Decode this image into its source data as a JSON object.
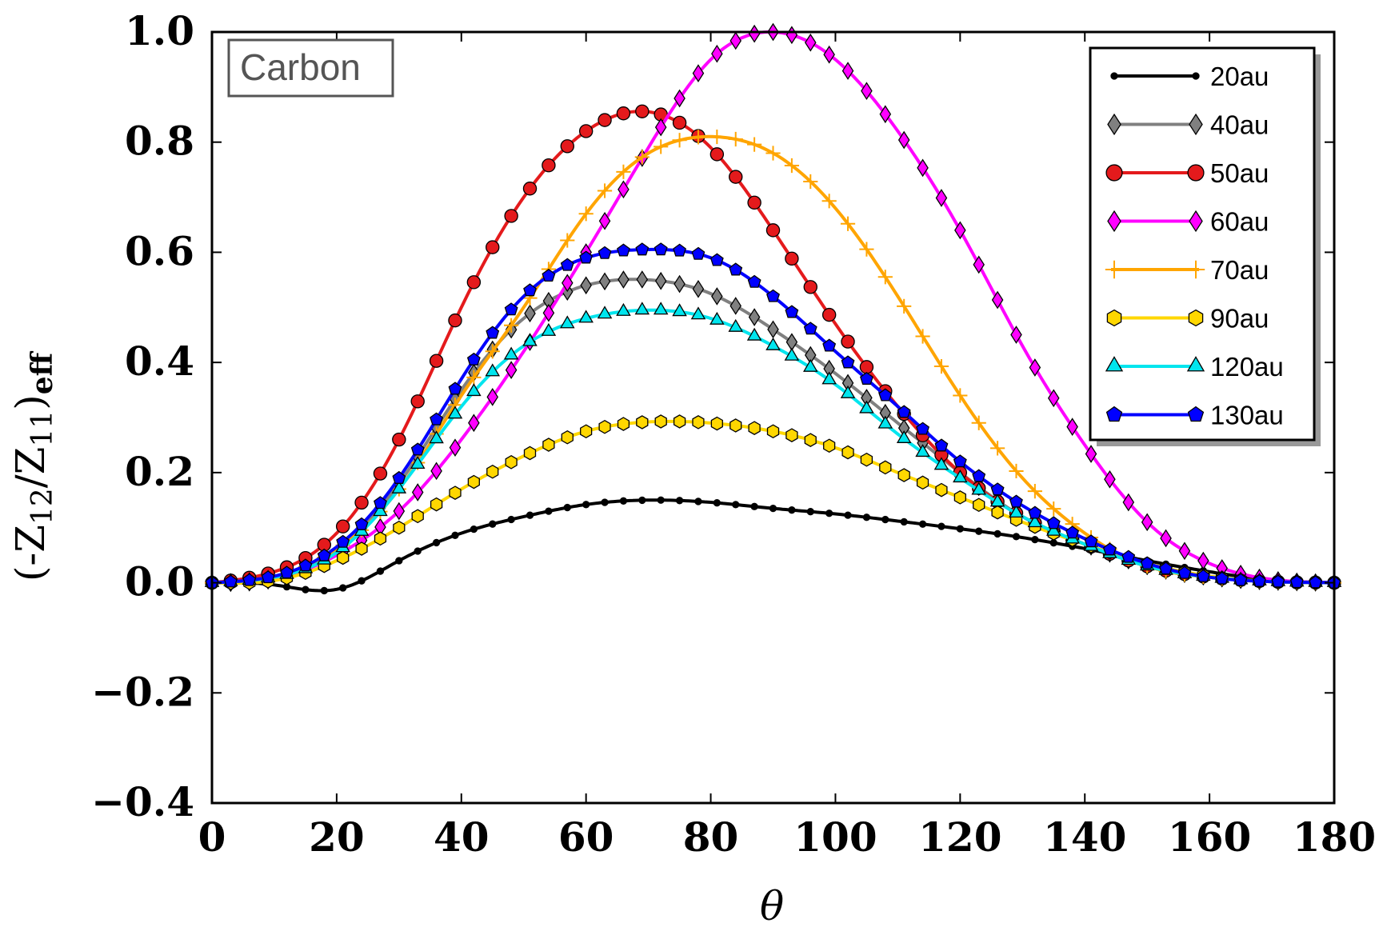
{
  "chart_data": {
    "type": "line",
    "title": "",
    "annotation": "Carbon",
    "xlabel": "θ",
    "ylabel": {
      "main": "(-Z",
      "sub1": "12",
      "mid": "/Z",
      "sub2": "11",
      "close": ")",
      "sub3": "eff"
    },
    "xlim": [
      0,
      180
    ],
    "ylim": [
      -0.4,
      1.0
    ],
    "xticks": [
      0,
      20,
      40,
      60,
      80,
      100,
      120,
      140,
      160,
      180
    ],
    "xtick_labels": [
      "0",
      "20",
      "40",
      "60",
      "80",
      "100",
      "120",
      "140",
      "160",
      "180"
    ],
    "yticks": [
      -0.4,
      -0.2,
      0.0,
      0.2,
      0.4,
      0.6,
      0.8,
      1.0
    ],
    "ytick_labels": [
      "−0.4",
      "−0.2",
      "0.0",
      "0.2",
      "0.4",
      "0.6",
      "0.8",
      "1.0"
    ],
    "grid": false,
    "legend_position": "top-right",
    "x": [
      0,
      10,
      20,
      30,
      40,
      50,
      60,
      70,
      80,
      90,
      100,
      110,
      120,
      130,
      140,
      150,
      160,
      170,
      180
    ],
    "series": [
      {
        "name": "20au",
        "color": "#000000",
        "marker": "dot",
        "values": [
          0,
          -0.004,
          -0.012,
          0.04,
          0.09,
          0.12,
          0.142,
          0.15,
          0.146,
          0.135,
          0.125,
          0.112,
          0.098,
          0.082,
          0.062,
          0.04,
          0.02,
          0.005,
          0
        ]
      },
      {
        "name": "40au",
        "color": "#808080",
        "marker": "diamond",
        "values": [
          0,
          0.01,
          0.06,
          0.18,
          0.35,
          0.48,
          0.54,
          0.55,
          0.525,
          0.46,
          0.38,
          0.29,
          0.2,
          0.12,
          0.07,
          0.03,
          0.01,
          0.002,
          0
        ]
      },
      {
        "name": "50au",
        "color": "#e41a1c",
        "marker": "circle",
        "values": [
          0,
          0.02,
          0.09,
          0.26,
          0.5,
          0.7,
          0.82,
          0.855,
          0.79,
          0.64,
          0.47,
          0.32,
          0.2,
          0.12,
          0.07,
          0.03,
          0.01,
          0.002,
          0
        ]
      },
      {
        "name": "60au",
        "color": "#ff00ff",
        "marker": "diamond",
        "values": [
          0,
          0.006,
          0.05,
          0.13,
          0.26,
          0.42,
          0.6,
          0.79,
          0.95,
          1.0,
          0.95,
          0.82,
          0.64,
          0.43,
          0.25,
          0.11,
          0.035,
          0.006,
          0
        ]
      },
      {
        "name": "70au",
        "color": "#ffa500",
        "marker": "plus",
        "values": [
          0,
          0.01,
          0.06,
          0.17,
          0.34,
          0.5,
          0.67,
          0.78,
          0.81,
          0.78,
          0.68,
          0.52,
          0.34,
          0.19,
          0.09,
          0.03,
          0.01,
          0.002,
          0
        ]
      },
      {
        "name": "90au",
        "color": "#ffd700",
        "marker": "hexagon",
        "values": [
          0,
          0.004,
          0.04,
          0.1,
          0.17,
          0.23,
          0.275,
          0.292,
          0.29,
          0.275,
          0.245,
          0.2,
          0.155,
          0.11,
          0.07,
          0.035,
          0.012,
          0.002,
          0
        ]
      },
      {
        "name": "120au",
        "color": "#00e5ee",
        "marker": "triangle",
        "values": [
          0,
          0.01,
          0.055,
          0.17,
          0.32,
          0.43,
          0.48,
          0.495,
          0.48,
          0.43,
          0.36,
          0.27,
          0.19,
          0.12,
          0.07,
          0.03,
          0.01,
          0.002,
          0
        ]
      },
      {
        "name": "130au",
        "color": "#0000ff",
        "marker": "pentagon",
        "values": [
          0,
          0.012,
          0.065,
          0.19,
          0.37,
          0.52,
          0.59,
          0.605,
          0.59,
          0.52,
          0.42,
          0.32,
          0.22,
          0.14,
          0.08,
          0.035,
          0.01,
          0.002,
          0
        ]
      }
    ]
  }
}
